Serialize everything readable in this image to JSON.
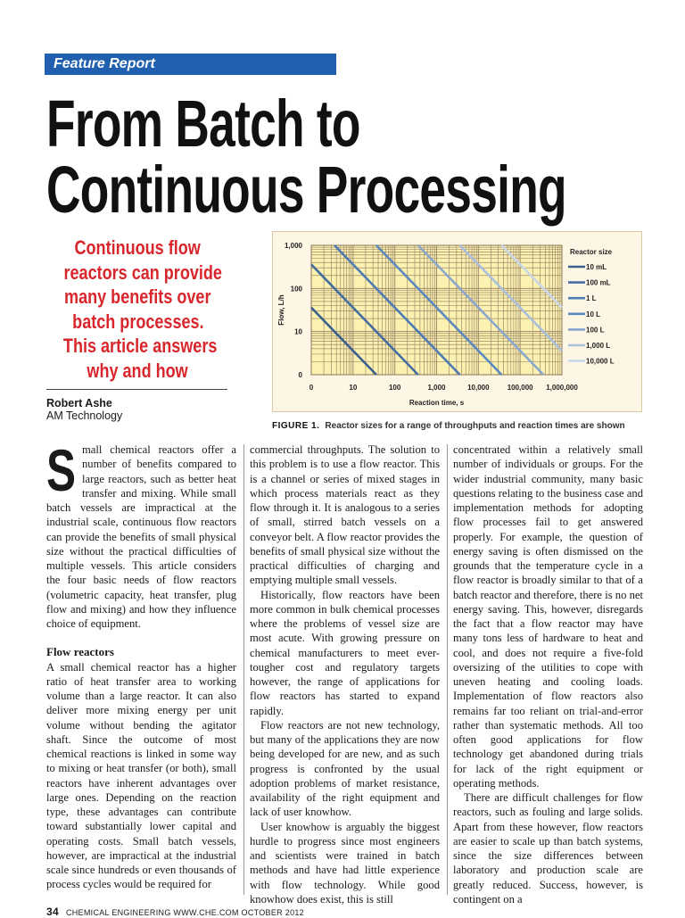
{
  "header": {
    "section_label": "Feature Report",
    "section_color": "#2160ae"
  },
  "title": {
    "line1": "From Batch to",
    "line2": "Continuous Processing"
  },
  "subtitle": {
    "lines": [
      "Continuous flow",
      "reactors can provide",
      "many benefits over",
      "batch processes.",
      "This article answers",
      "why and how"
    ],
    "color": "#d8262c"
  },
  "byline": {
    "author": "Robert Ashe",
    "affiliation": "AM Technology"
  },
  "figure": {
    "label": "FIGURE 1.",
    "caption": "Reactor sizes for a range of throughputs and reaction times are shown"
  },
  "chart_data": {
    "type": "line",
    "xlabel": "Reaction time, s",
    "ylabel": "Flow, L/h",
    "x_scale": "log",
    "y_scale": "log",
    "xlim": [
      1,
      1000000
    ],
    "ylim": [
      1,
      1000
    ],
    "x_ticks": [
      {
        "value": 1,
        "label": "0"
      },
      {
        "value": 10,
        "label": "10"
      },
      {
        "value": 100,
        "label": "100"
      },
      {
        "value": 1000,
        "label": "1,000"
      },
      {
        "value": 10000,
        "label": "10,000"
      },
      {
        "value": 100000,
        "label": "100,000"
      },
      {
        "value": 1000000,
        "label": "1,000,000"
      }
    ],
    "y_ticks": [
      {
        "value": 1,
        "label": "0"
      },
      {
        "value": 10,
        "label": "10"
      },
      {
        "value": 100,
        "label": "100"
      },
      {
        "value": 1000,
        "label": "1,000"
      }
    ],
    "grid": true,
    "background": "#fbf2b2",
    "legend": {
      "title": "Reactor size",
      "position": "right"
    },
    "series": [
      {
        "name": "10 mL",
        "color": "#3c5f8e",
        "points": [
          [
            1,
            36
          ],
          [
            36,
            1
          ]
        ]
      },
      {
        "name": "100 mL",
        "color": "#456d9f",
        "points": [
          [
            1,
            360
          ],
          [
            360,
            1
          ]
        ]
      },
      {
        "name": "1 L",
        "color": "#4f7bb3",
        "points": [
          [
            3.6,
            1000
          ],
          [
            3600,
            1
          ]
        ]
      },
      {
        "name": "10 L",
        "color": "#5c88c0",
        "points": [
          [
            36,
            1000
          ],
          [
            36000,
            1
          ]
        ]
      },
      {
        "name": "100 L",
        "color": "#8aa6cc",
        "points": [
          [
            360,
            1000
          ],
          [
            360000,
            1
          ]
        ]
      },
      {
        "name": "1,000 L",
        "color": "#a9bfdc",
        "points": [
          [
            3600,
            1000
          ],
          [
            1000000,
            3.6
          ]
        ]
      },
      {
        "name": "10,000 L",
        "color": "#c9d7ea",
        "points": [
          [
            36000,
            1000
          ],
          [
            1000000,
            36
          ]
        ]
      }
    ]
  },
  "body": {
    "col1": {
      "dropcap": "S",
      "intro": "mall chemical reactors offer a number of benefits compared to large reactors, such as better heat transfer and mixing. While small batch vessels are impractical at the industrial scale, continuous flow reactors can provide the benefits of small physical size without the prac­tical difficulties of multiple vessels. This article considers the four basic needs of flow reactors (volumetric capacity, heat transfer, plug flow and mixing) and how they influence choice of equipment.",
      "heading": "Flow reactors",
      "p1": "A small chemical reactor has a higher ratio of heat transfer area to work­ing volume than a large reactor. It can also deliver more mixing energy per unit volume without bending the agitator shaft. Since the outcome of most chemical reactions is linked in some way to mixing or heat transfer (or both), small reactors have inherent advantages over large ones. Depend­ing on the reaction type, these ad­vantages can contribute toward sub­stantially lower capital and operating costs. Small batch vessels, however, are impractical at the industrial scale since hundreds or even thousands of process cycles would be required for"
    },
    "col2": {
      "p1": "commercial throughputs. The solu­tion to this problem is to use a flow reactor. This is a channel or series of mixed stages in which process materi­als react as they flow through it. It is analogous to a series of small, stirred batch vessels on a conveyor belt. A flow reactor provides the benefits of small physical size without the practi­cal difficulties of charging and empty­ing multiple small vessels.",
      "p2": "Historically, flow reactors have been more common in bulk chemical processes where the problems of ves­sel size are most acute. With growing pressure on chemical manufacturers to meet ever-tougher cost and regula­tory targets however, the range of ap­plications for flow reactors has started to expand rapidly.",
      "p3": "Flow reactors are not new technol­ogy, but many of the applications they are now being developed for are new, and as such progress is confronted by the usual adoption problems of mar­ket resistance, availability of the right equipment and lack of user knowhow.",
      "p4": "User knowhow is arguably the big­gest hurdle to progress since most en­gineers and scientists were trained in batch methods and have had little ex­perience with flow technology. While good knowhow does exist, this is still"
    },
    "col3": {
      "p1": "concentrated within a relatively small number of individuals or groups. For the wider industrial community, many basic questions relating to the busi­ness case and implementation meth­ods for adopting flow processes fail to get answered properly. For example, the question of energy saving is often dismissed on the grounds that the temperature cycle in a flow reactor is broadly similar to that of a batch reac­tor and therefore, there is no net en­ergy saving. This, however, disregards the fact that a flow reactor may have many tons less of hardware to heat and cool, and does not require a five-fold oversizing of the utilities to cope with uneven heating and cooling loads. Implementation of flow reactors also remains far too reliant on trial-and-error rather than systematic methods. All too often good applications for flow technology get abandoned during tri­als for lack of the right equipment or operating methods.",
      "p2": "There are difficult challenges for flow reactors, such as fouling and large solids. Apart from these how­ever, flow reactors are easier to scale up than batch systems, since the size differences between laboratory and production scale are greatly reduced. Success, however, is contingent on a"
    }
  },
  "footer": {
    "page_number": "34",
    "publication": "CHEMICAL ENGINEERING   WWW.CHE.COM   OCTOBER 2012"
  }
}
